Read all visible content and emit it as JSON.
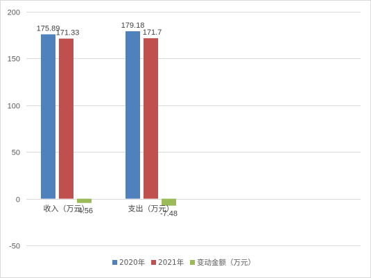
{
  "chart_data": {
    "type": "bar",
    "categories": [
      "收入（万元）",
      "支出（万元）"
    ],
    "series": [
      {
        "name": "2020年",
        "values": [
          175.89,
          179.18
        ],
        "labels": [
          "175.89",
          "179.18"
        ],
        "color": "#4f81bd"
      },
      {
        "name": "2021年",
        "values": [
          171.33,
          171.7
        ],
        "labels": [
          "171.33",
          "171.7"
        ],
        "color": "#c0504d"
      },
      {
        "name": "变动金额（万元）",
        "values": [
          -4.56,
          -7.48
        ],
        "labels": [
          "-4.56",
          "-7.48"
        ],
        "color": "#9bbb59"
      }
    ],
    "yticks": [
      "-50",
      "0",
      "50",
      "100",
      "150",
      "200"
    ],
    "ylim": [
      -50,
      200
    ],
    "grid": true,
    "legend_position": "bottom",
    "title": "",
    "xlabel": "",
    "ylabel": ""
  }
}
